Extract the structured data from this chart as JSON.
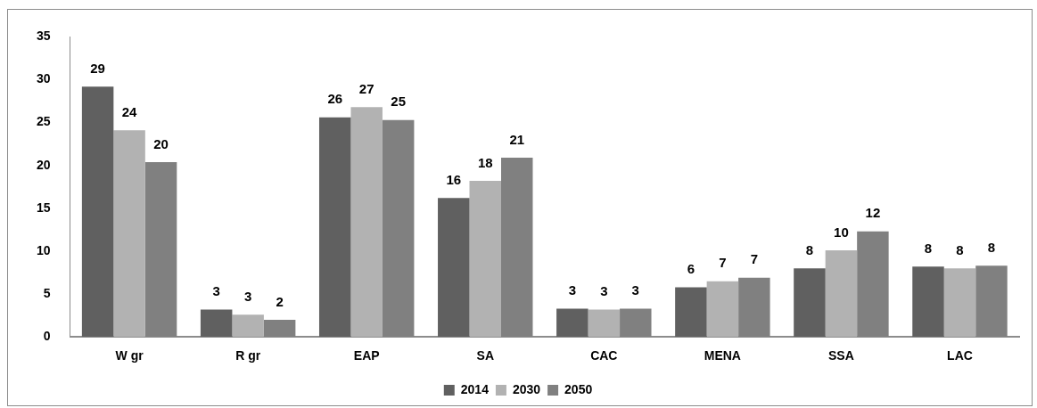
{
  "chart_data": {
    "type": "bar",
    "categories": [
      "W gr",
      "R gr",
      "EAP",
      "SA",
      "CAC",
      "MENA",
      "SSA",
      "LAC"
    ],
    "series": [
      {
        "name": "2014",
        "color": "#606060",
        "values": [
          29.2,
          3.2,
          25.6,
          16.2,
          3.3,
          5.8,
          8.0,
          8.2
        ],
        "value_labels": [
          "29",
          "3",
          "26",
          "16",
          "3",
          "6",
          "8",
          "8"
        ]
      },
      {
        "name": "2030",
        "color": "#b2b2b2",
        "values": [
          24.1,
          2.6,
          26.8,
          18.2,
          3.2,
          6.5,
          10.1,
          8.0
        ],
        "value_labels": [
          "24",
          "3",
          "27",
          "18",
          "3",
          "7",
          "10",
          "8"
        ]
      },
      {
        "name": "2050",
        "color": "#808080",
        "values": [
          20.4,
          2.0,
          25.3,
          20.9,
          3.3,
          6.9,
          12.3,
          8.3
        ],
        "value_labels": [
          "20",
          "2",
          "25",
          "21",
          "3",
          "7",
          "12",
          "8"
        ]
      }
    ],
    "ylim": [
      0,
      35
    ],
    "yticks": [
      0,
      5,
      10,
      15,
      20,
      25,
      30,
      35
    ],
    "grid": false,
    "legend": "bottom"
  }
}
